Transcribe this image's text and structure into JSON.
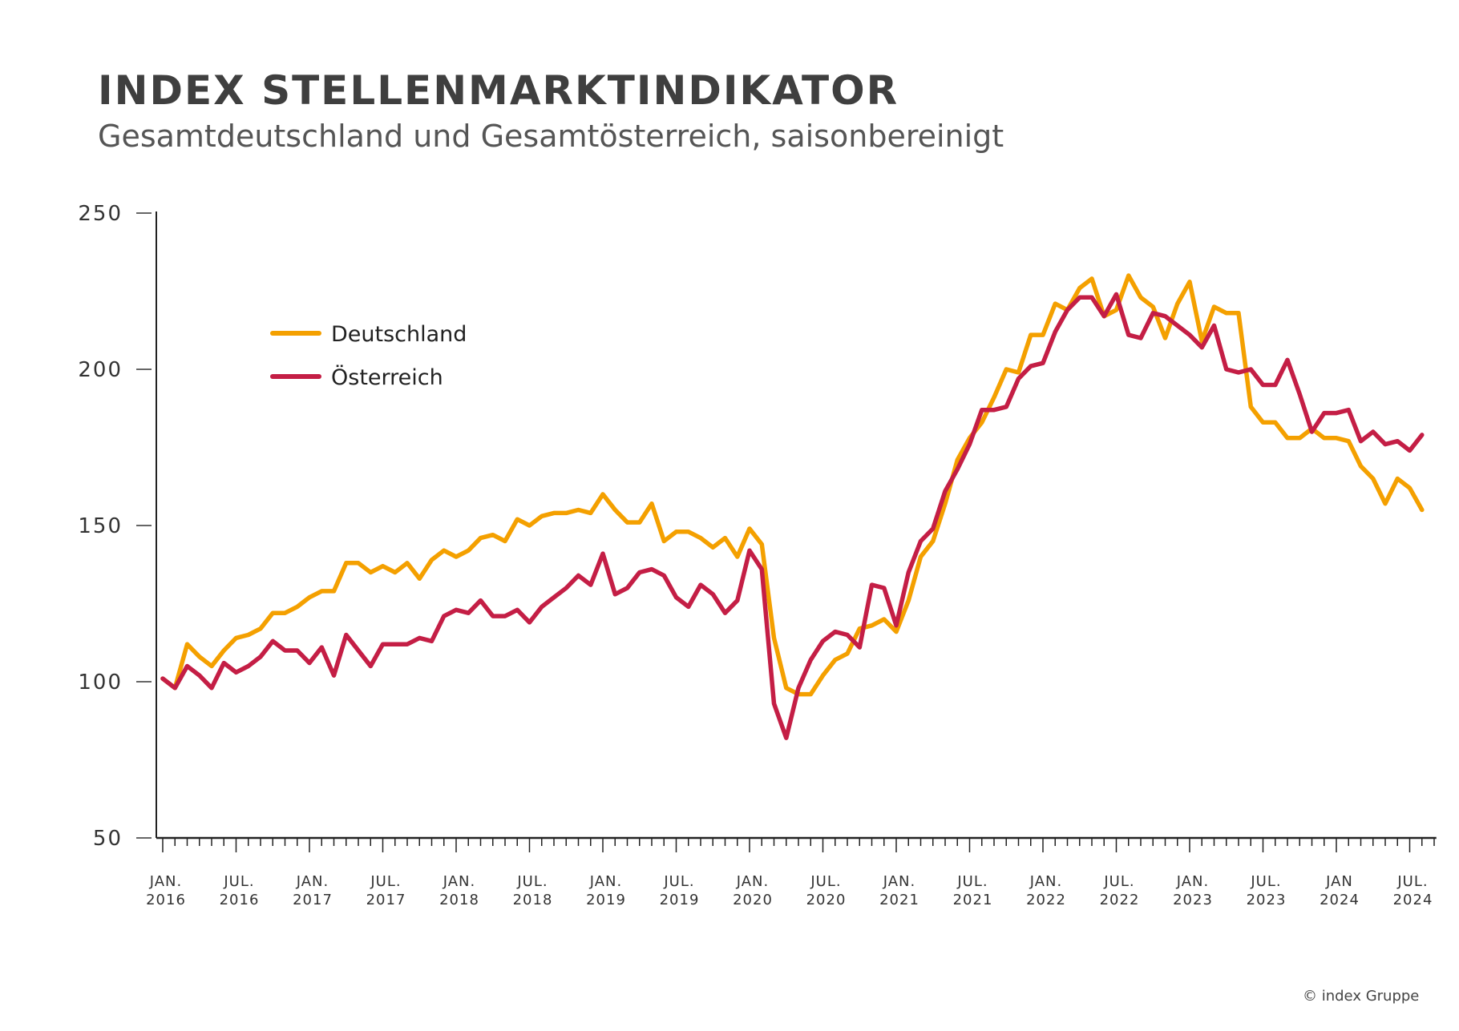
{
  "chart_data": {
    "type": "line",
    "title": "INDEX STELLENMARKTINDIKATOR",
    "subtitle": "Gesamtdeutschland und Gesamtösterreich, saisonbereinigt",
    "xlabel": "",
    "ylabel": "",
    "ylim": [
      50,
      250
    ],
    "yticks": [
      "250",
      "200",
      "150",
      "100",
      "50"
    ],
    "yticks_values": [
      250,
      200,
      150,
      100,
      50
    ],
    "x_start": "2016-01",
    "x_frequency": "monthly",
    "xtick_labels": [
      [
        "JAN.",
        "2016"
      ],
      [
        "JUL.",
        "2016"
      ],
      [
        "JAN.",
        "2017"
      ],
      [
        "JUL.",
        "2017"
      ],
      [
        "JAN.",
        "2018"
      ],
      [
        "JUL.",
        "2018"
      ],
      [
        "JAN.",
        "2019"
      ],
      [
        "JUL.",
        "2019"
      ],
      [
        "JAN.",
        "2020"
      ],
      [
        "JUL.",
        "2020"
      ],
      [
        "JAN.",
        "2021"
      ],
      [
        "JUL.",
        "2021"
      ],
      [
        "JAN.",
        "2022"
      ],
      [
        "JUL.",
        "2022"
      ],
      [
        "JAN.",
        "2023"
      ],
      [
        "JUL.",
        "2023"
      ],
      [
        "JAN",
        "2024"
      ],
      [
        "JUL.",
        "2024"
      ]
    ],
    "grid": false,
    "legend_position": "top-left",
    "series": [
      {
        "name": "Deutschland",
        "color": "#F4A000",
        "values": [
          101,
          98,
          112,
          108,
          105,
          110,
          114,
          115,
          117,
          122,
          122,
          124,
          127,
          129,
          129,
          138,
          138,
          135,
          137,
          135,
          138,
          133,
          139,
          142,
          140,
          142,
          146,
          147,
          145,
          152,
          150,
          153,
          154,
          154,
          155,
          154,
          160,
          155,
          151,
          151,
          157,
          145,
          148,
          148,
          146,
          143,
          146,
          140,
          149,
          144,
          114,
          98,
          96,
          96,
          102,
          107,
          109,
          117,
          118,
          120,
          116,
          126,
          140,
          145,
          157,
          171,
          178,
          183,
          191,
          200,
          199,
          211,
          211,
          221,
          219,
          226,
          229,
          217,
          219,
          230,
          223,
          220,
          210,
          221,
          228,
          209,
          220,
          218,
          218,
          188,
          183,
          183,
          178,
          178,
          181,
          178,
          178,
          177,
          169,
          165,
          157,
          165,
          162,
          155
        ]
      },
      {
        "name": "Österreich",
        "color": "#C41E45",
        "values": [
          101,
          98,
          105,
          102,
          98,
          106,
          103,
          105,
          108,
          113,
          110,
          110,
          106,
          111,
          102,
          115,
          110,
          105,
          112,
          112,
          112,
          114,
          113,
          121,
          123,
          122,
          126,
          121,
          121,
          123,
          119,
          124,
          127,
          130,
          134,
          131,
          141,
          128,
          130,
          135,
          136,
          134,
          127,
          124,
          131,
          128,
          122,
          126,
          142,
          136,
          93,
          82,
          98,
          107,
          113,
          116,
          115,
          111,
          131,
          130,
          118,
          135,
          145,
          149,
          161,
          168,
          176,
          187,
          187,
          188,
          197,
          201,
          202,
          212,
          219,
          223,
          223,
          217,
          224,
          211,
          210,
          218,
          217,
          214,
          211,
          207,
          214,
          200,
          199,
          200,
          195,
          195,
          203,
          192,
          180,
          186,
          186,
          187,
          177,
          180,
          176,
          177,
          174,
          179
        ]
      }
    ]
  },
  "footer": {
    "copyright": "© index Gruppe"
  }
}
